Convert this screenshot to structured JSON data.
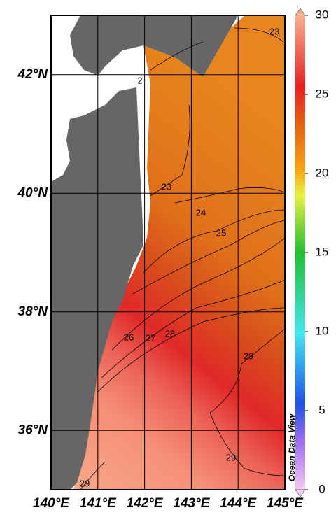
{
  "map": {
    "xlim": [
      140,
      145
    ],
    "ylim": [
      35,
      43
    ],
    "xticks": [
      {
        "value": 140,
        "label": "140°E"
      },
      {
        "value": 141,
        "label": "141°E"
      },
      {
        "value": 142,
        "label": "142°E"
      },
      {
        "value": 143,
        "label": "143°E"
      },
      {
        "value": 144,
        "label": "144°E"
      },
      {
        "value": 145,
        "label": "145°E"
      }
    ],
    "yticks": [
      {
        "value": 36,
        "label": "36°N"
      },
      {
        "value": 38,
        "label": "38°N"
      },
      {
        "value": 40,
        "label": "40°N"
      },
      {
        "value": 42,
        "label": "42°N"
      }
    ],
    "contour_labels": [
      "23",
      "2",
      "23",
      "24",
      "25",
      "26",
      "27",
      "28",
      "29",
      "29",
      "29"
    ],
    "watermark": "Ocean Data View"
  },
  "colorbar": {
    "range": [
      0,
      30
    ],
    "ticks": [
      0,
      5,
      10,
      15,
      20,
      25,
      30
    ]
  }
}
